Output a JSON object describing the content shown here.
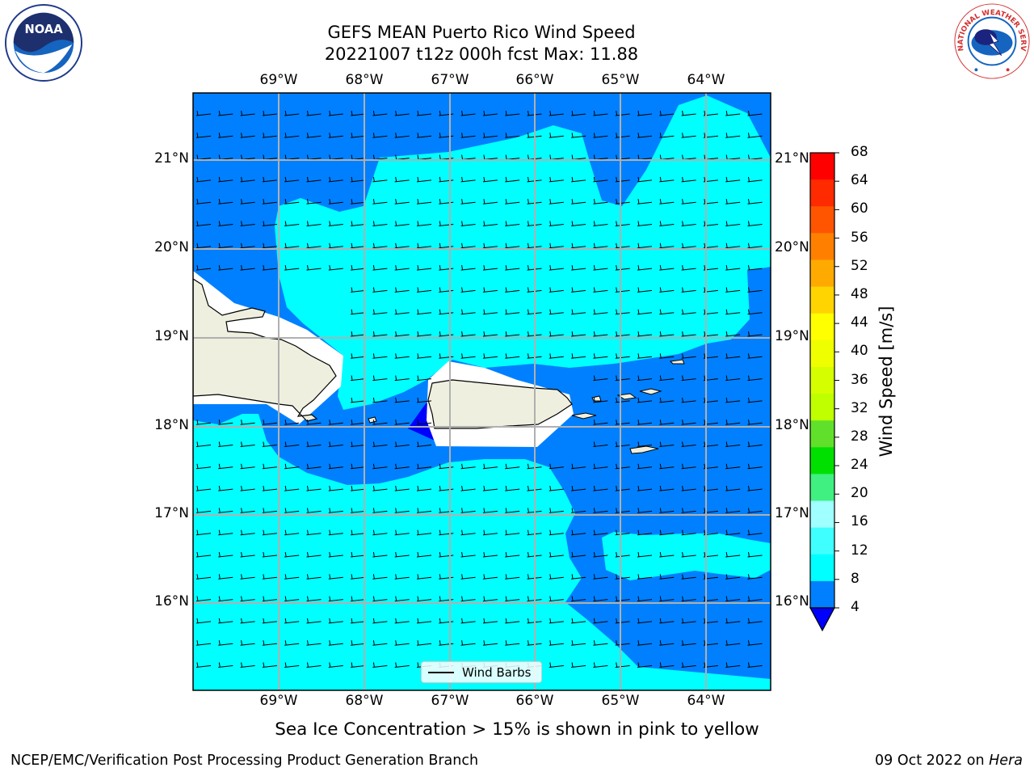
{
  "header": {
    "title_line1": "GEFS MEAN Puerto Rico Wind Speed",
    "title_line2": "20221007 t12z 000h fcst   Max: 11.88"
  },
  "map": {
    "lon_labels": [
      "69°W",
      "68°W",
      "67°W",
      "66°W",
      "65°W",
      "64°W"
    ],
    "lat_labels": [
      "21°N",
      "20°N",
      "19°N",
      "18°N",
      "17°N",
      "16°N"
    ],
    "legend_label": "Wind Barbs",
    "colors": {
      "band_4_8": "#0080ff",
      "band_8_12": "#00ffff",
      "band_12_16": "#80ffff",
      "below_4": "#0000ff",
      "land": "#efefdf",
      "grid": "#b0b0b0"
    }
  },
  "colorbar": {
    "title": "Wind Speed [m/s]",
    "ticks": [
      "68",
      "64",
      "60",
      "56",
      "52",
      "48",
      "44",
      "40",
      "36",
      "32",
      "28",
      "24",
      "20",
      "16",
      "12",
      "8",
      "4"
    ],
    "colors_top_to_bottom": [
      "#ff0000",
      "#ff2a00",
      "#ff5500",
      "#ff8000",
      "#ffaa00",
      "#ffd400",
      "#ffff00",
      "#f0ff00",
      "#d5ff00",
      "#bfff00",
      "#60e02a",
      "#00e000",
      "#40f080",
      "#a0ffff",
      "#40ffff",
      "#00ffff",
      "#0080ff"
    ],
    "extend_color": "#0000ff"
  },
  "footer": {
    "sea_ice_note": "Sea Ice Concentration > 15% is shown in pink to yellow",
    "left": "NCEP/EMC/Verification Post Processing Product Generation Branch",
    "date": "09 Oct 2022 on ",
    "host": "Hera"
  },
  "logos": {
    "left": "noaa-logo",
    "left_text": "NOAA",
    "right": "nws-logo",
    "right_text": "NATIONAL WEATHER SERVICE"
  }
}
